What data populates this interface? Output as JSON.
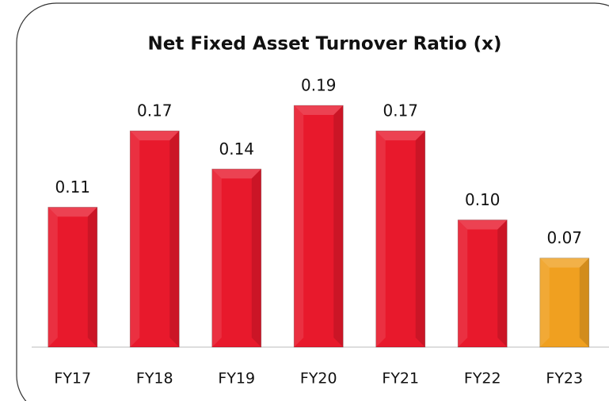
{
  "chart_data": {
    "type": "bar",
    "title": "Net Fixed Asset Turnover Ratio (x)",
    "categories": [
      "FY17",
      "FY18",
      "FY19",
      "FY20",
      "FY21",
      "FY22",
      "FY23"
    ],
    "values": [
      0.11,
      0.17,
      0.14,
      0.19,
      0.17,
      0.1,
      0.07
    ],
    "value_labels": [
      "0.11",
      "0.17",
      "0.14",
      "0.19",
      "0.17",
      "0.10",
      "0.07"
    ],
    "colors": [
      "#e8192c",
      "#e8192c",
      "#e8192c",
      "#e8192c",
      "#e8192c",
      "#e8192c",
      "#f0a020"
    ]
  }
}
